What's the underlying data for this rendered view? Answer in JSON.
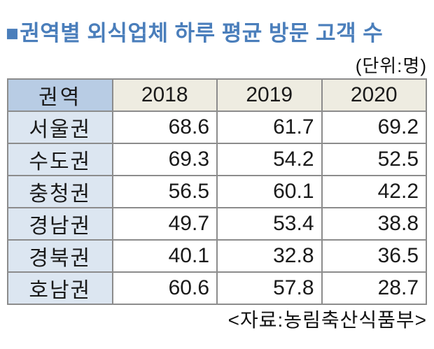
{
  "title": {
    "bullet": "■",
    "text": "권역별 외식업체 하루 평균 방문 고객 수"
  },
  "unit_label": "(단위:명)",
  "source_label": "<자료:농림축산식품부>",
  "table": {
    "header": [
      "권역",
      "2018",
      "2019",
      "2020"
    ],
    "rows": [
      [
        "서울권",
        "68.6",
        "61.7",
        "69.2"
      ],
      [
        "수도권",
        "69.3",
        "54.2",
        "52.5"
      ],
      [
        "충청권",
        "56.5",
        "60.1",
        "42.2"
      ],
      [
        "경남권",
        "49.7",
        "53.4",
        "38.8"
      ],
      [
        "경북권",
        "40.1",
        "32.8",
        "36.5"
      ],
      [
        "호남권",
        "60.6",
        "57.8",
        "28.7"
      ]
    ]
  },
  "colors": {
    "title_blue": "#4a7ebb",
    "header_region_bg": "#b8cce4",
    "header_year_bg": "#eeece1",
    "region_col_bg": "#dce6f1",
    "border": "#8c8c8c",
    "text": "#1a1a1a"
  },
  "chart_data": {
    "type": "table",
    "title": "권역별 외식업체 하루 평균 방문 고객 수",
    "unit": "명",
    "source": "농림축산식품부",
    "columns": [
      "권역",
      "2018",
      "2019",
      "2020"
    ],
    "categories": [
      "서울권",
      "수도권",
      "충청권",
      "경남권",
      "경북권",
      "호남권"
    ],
    "series": [
      {
        "name": "2018",
        "values": [
          68.6,
          69.3,
          56.5,
          49.7,
          40.1,
          60.6
        ]
      },
      {
        "name": "2019",
        "values": [
          61.7,
          54.2,
          60.1,
          53.4,
          32.8,
          57.8
        ]
      },
      {
        "name": "2020",
        "values": [
          69.2,
          52.5,
          42.2,
          38.8,
          36.5,
          28.7
        ]
      }
    ]
  }
}
